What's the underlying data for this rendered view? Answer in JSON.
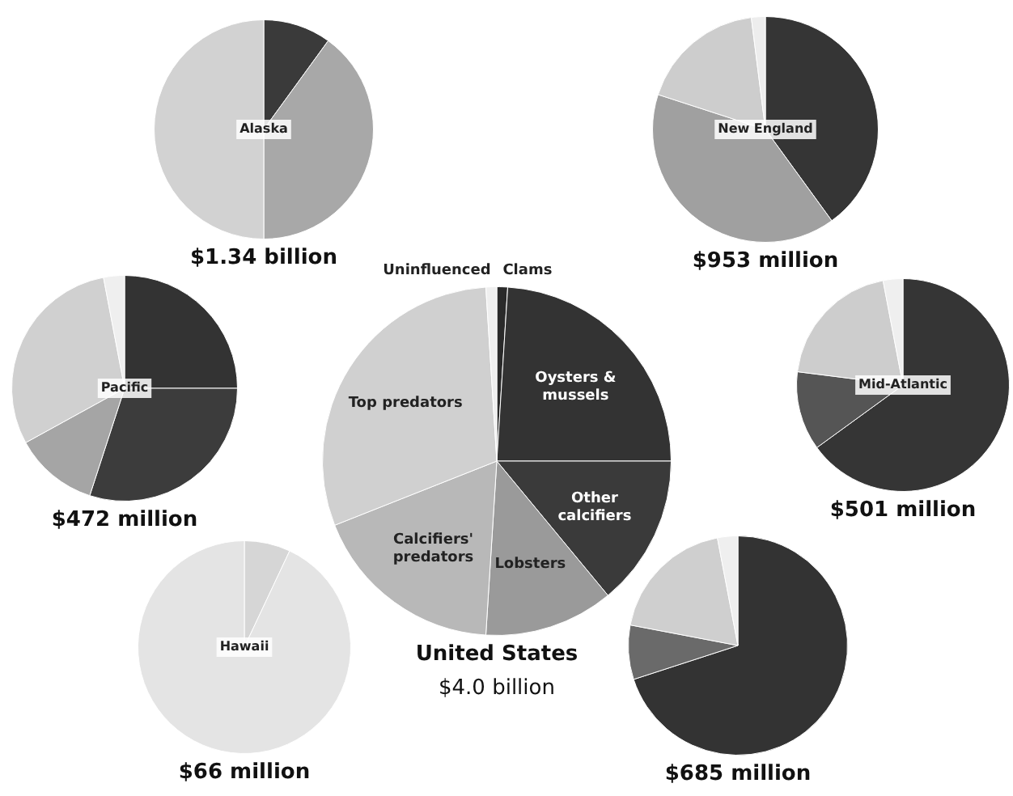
{
  "chart_data": [
    {
      "type": "pie",
      "title": "$1.34 billion",
      "annotations": [
        "Alaska"
      ],
      "categories": [
        null,
        null,
        null
      ],
      "values": [
        10,
        40,
        50
      ],
      "colors": [
        "#3a3a3a",
        "#a8a8a8",
        "#d2d2d2"
      ]
    },
    {
      "type": "pie",
      "title": "$953 million",
      "annotations": [
        "New England"
      ],
      "categories": [
        null,
        null,
        null,
        null
      ],
      "values": [
        40,
        40,
        18,
        2
      ],
      "colors": [
        "#353535",
        "#a0a0a0",
        "#cdcdcd",
        "#ededed"
      ]
    },
    {
      "type": "pie",
      "title": "$472 million",
      "annotations": [
        "Pacific"
      ],
      "categories": [
        null,
        null,
        null,
        null,
        null
      ],
      "values": [
        25,
        30,
        12,
        30,
        3
      ],
      "colors": [
        "#333333",
        "#3c3c3c",
        "#a5a5a5",
        "#d0d0d0",
        "#efefef"
      ]
    },
    {
      "type": "pie",
      "title": "United States",
      "subtitle": "$4.0 billion",
      "categories": [
        "Clams",
        "Oysters & mussels",
        "Other calcifiers",
        "Lobsters",
        "Calcifiers' predators",
        "Top predators",
        "Uninfluenced"
      ],
      "values": [
        1,
        24,
        14,
        12,
        18,
        30,
        1
      ],
      "colors": [
        "#2a2a2a",
        "#333333",
        "#3a3a3a",
        "#9a9a9a",
        "#b8b8b8",
        "#d0d0d0",
        "#efefef"
      ]
    },
    {
      "type": "pie",
      "title": "$501 million",
      "annotations": [
        "Mid-Atlantic"
      ],
      "categories": [
        null,
        null,
        null,
        null
      ],
      "values": [
        65,
        12,
        20,
        3
      ],
      "colors": [
        "#353535",
        "#555555",
        "#cdcdcd",
        "#efefef"
      ]
    },
    {
      "type": "pie",
      "title": "$66 million",
      "annotations": [
        "Hawaii"
      ],
      "categories": [
        null,
        null
      ],
      "values": [
        7,
        93
      ],
      "colors": [
        "#d6d6d6",
        "#e4e4e4"
      ]
    },
    {
      "type": "pie",
      "title": "$685 million",
      "categories": [
        null,
        null,
        null,
        null
      ],
      "values": [
        70,
        8,
        19,
        3
      ],
      "colors": [
        "#333333",
        "#6a6a6a",
        "#cfcfcf",
        "#efefef"
      ]
    }
  ]
}
